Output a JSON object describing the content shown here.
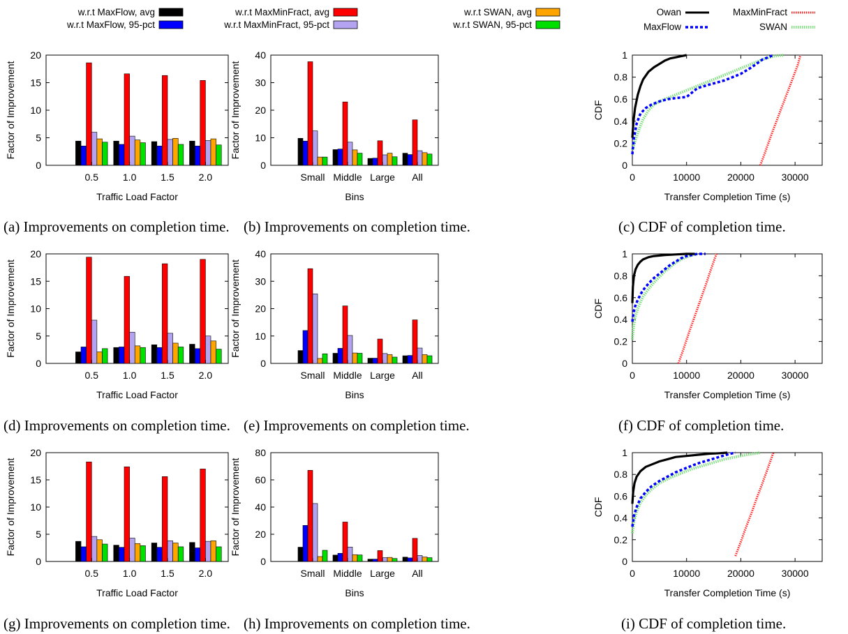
{
  "legend_top": {
    "items": [
      {
        "label": "w.r.t MaxFlow, avg",
        "color": "#000000"
      },
      {
        "label": "w.r.t MaxFlow, 95-pct",
        "color": "#0000ff"
      },
      {
        "label": "w.r.t MaxMinFract, avg",
        "color": "#ff0000"
      },
      {
        "label": "w.r.t MaxMinFract, 95-pct",
        "color": "#b3a3f0"
      },
      {
        "label": "w.r.t SWAN, avg",
        "color": "#ffa500"
      },
      {
        "label": "w.r.t SWAN, 95-pct",
        "color": "#00e000"
      }
    ]
  },
  "legend_cdf": {
    "items": [
      {
        "label": "Owan",
        "color": "#000000",
        "style": "solid"
      },
      {
        "label": "MaxMinFract",
        "color": "#ff2020",
        "style": "dotted"
      },
      {
        "label": "MaxFlow",
        "color": "#0000ff",
        "style": "dashed"
      },
      {
        "label": "SWAN",
        "color": "#7ee07e",
        "style": "dotted"
      }
    ]
  },
  "captions": {
    "a": "(a) Improvements on completion time.",
    "b": "(b) Improvements on completion time.",
    "c": "(c) CDF of completion time.",
    "d": "(d) Improvements on completion time.",
    "e": "(e) Improvements on completion time.",
    "f": "(f) CDF of completion time.",
    "g": "(g) Improvements on completion time.",
    "h": "(h) Improvements on completion time.",
    "i": "(i) CDF of completion time."
  },
  "chart_data": [
    {
      "id": "a",
      "type": "bar",
      "xlabel": "Traffic Load Factor",
      "ylabel": "Factor of Improvement",
      "ylim": [
        0,
        20
      ],
      "yticks": [
        0,
        5,
        10,
        15,
        20
      ],
      "categories": [
        "0.5",
        "1.0",
        "1.5",
        "2.0"
      ],
      "series": [
        {
          "name": "w.r.t MaxFlow, avg",
          "values": [
            4.4,
            4.4,
            4.3,
            4.4
          ]
        },
        {
          "name": "w.r.t MaxFlow, 95-pct",
          "values": [
            3.5,
            3.8,
            3.5,
            3.5
          ]
        },
        {
          "name": "w.r.t MaxMinFract, avg",
          "values": [
            18.6,
            16.6,
            16.3,
            15.4
          ]
        },
        {
          "name": "w.r.t MaxMinFract, 95-pct",
          "values": [
            6.0,
            5.3,
            4.7,
            4.5
          ]
        },
        {
          "name": "w.r.t SWAN, avg",
          "values": [
            4.8,
            4.6,
            4.9,
            4.8
          ]
        },
        {
          "name": "w.r.t SWAN, 95-pct",
          "values": [
            4.2,
            4.1,
            3.8,
            3.7
          ]
        }
      ]
    },
    {
      "id": "b",
      "type": "bar",
      "xlabel": "Bins",
      "ylabel": "Factor of Improvement",
      "ylim": [
        0,
        40
      ],
      "yticks": [
        0,
        10,
        20,
        30,
        40
      ],
      "categories": [
        "Small",
        "Middle",
        "Large",
        "All"
      ],
      "series": [
        {
          "name": "w.r.t MaxFlow, avg",
          "values": [
            9.8,
            5.7,
            2.5,
            4.4
          ]
        },
        {
          "name": "w.r.t MaxFlow, 95-pct",
          "values": [
            8.8,
            5.9,
            2.6,
            3.9
          ]
        },
        {
          "name": "w.r.t MaxMinFract, avg",
          "values": [
            37.6,
            23.0,
            8.9,
            16.5
          ]
        },
        {
          "name": "w.r.t MaxMinFract, 95-pct",
          "values": [
            12.5,
            8.4,
            3.8,
            5.3
          ]
        },
        {
          "name": "w.r.t SWAN, avg",
          "values": [
            3.0,
            5.6,
            4.4,
            4.6
          ]
        },
        {
          "name": "w.r.t SWAN, 95-pct",
          "values": [
            3.0,
            4.4,
            3.1,
            4.1
          ]
        }
      ]
    },
    {
      "id": "c",
      "type": "line",
      "xlabel": "Transfer Completion Time (s)",
      "ylabel": "CDF",
      "xlim": [
        0,
        35000
      ],
      "ylim": [
        0,
        1
      ],
      "xticks": [
        0,
        10000,
        20000,
        30000
      ],
      "yticks": [
        0,
        0.2,
        0.4,
        0.6,
        0.8,
        1
      ],
      "series": [
        {
          "name": "Owan",
          "x": [
            0,
            200,
            500,
            1000,
            1500,
            2000,
            3000,
            4000,
            5000,
            6000,
            7000,
            8000,
            9000,
            10000
          ],
          "y": [
            0.25,
            0.4,
            0.52,
            0.64,
            0.72,
            0.78,
            0.85,
            0.89,
            0.92,
            0.95,
            0.97,
            0.98,
            0.99,
            1.0
          ]
        },
        {
          "name": "MaxFlow",
          "x": [
            0,
            300,
            800,
            1500,
            2500,
            3500,
            5000,
            6500,
            8000,
            10000,
            12000,
            14000,
            17000,
            20000,
            22000,
            24000,
            26000
          ],
          "y": [
            0.1,
            0.25,
            0.38,
            0.47,
            0.52,
            0.55,
            0.58,
            0.6,
            0.61,
            0.62,
            0.7,
            0.73,
            0.77,
            0.83,
            0.89,
            0.96,
            1.0
          ]
        },
        {
          "name": "MaxMinFract",
          "x": [
            23600,
            24500,
            25500,
            26500,
            27500,
            28500,
            29500,
            30500,
            31000
          ],
          "y": [
            0.0,
            0.12,
            0.26,
            0.39,
            0.52,
            0.65,
            0.78,
            0.91,
            1.0
          ]
        },
        {
          "name": "SWAN",
          "x": [
            0,
            500,
            1200,
            2000,
            3000,
            4000,
            5000,
            6000,
            7000,
            9000,
            12000,
            15000,
            18000,
            21000,
            24000,
            26000,
            28000
          ],
          "y": [
            0.14,
            0.22,
            0.32,
            0.42,
            0.5,
            0.55,
            0.58,
            0.6,
            0.62,
            0.66,
            0.72,
            0.78,
            0.84,
            0.9,
            0.96,
            0.99,
            1.0
          ]
        }
      ]
    },
    {
      "id": "d",
      "type": "bar",
      "xlabel": "Traffic Load Factor",
      "ylabel": "Factor of Improvement",
      "ylim": [
        0,
        20
      ],
      "yticks": [
        0,
        5,
        10,
        15,
        20
      ],
      "categories": [
        "0.5",
        "1.0",
        "1.5",
        "2.0"
      ],
      "series": [
        {
          "name": "w.r.t MaxFlow, avg",
          "values": [
            2.1,
            2.9,
            3.4,
            3.5
          ]
        },
        {
          "name": "w.r.t MaxFlow, 95-pct",
          "values": [
            3.0,
            3.0,
            2.9,
            2.7
          ]
        },
        {
          "name": "w.r.t MaxMinFract, avg",
          "values": [
            19.4,
            15.9,
            18.2,
            19.0
          ]
        },
        {
          "name": "w.r.t MaxMinFract, 95-pct",
          "values": [
            7.9,
            5.7,
            5.5,
            5.0
          ]
        },
        {
          "name": "w.r.t SWAN, avg",
          "values": [
            2.1,
            3.2,
            3.7,
            4.1
          ]
        },
        {
          "name": "w.r.t SWAN, 95-pct",
          "values": [
            2.7,
            2.9,
            3.0,
            2.6
          ]
        }
      ]
    },
    {
      "id": "e",
      "type": "bar",
      "xlabel": "Bins",
      "ylabel": "Factor of Improvement",
      "ylim": [
        0,
        40
      ],
      "yticks": [
        0,
        10,
        20,
        30,
        40
      ],
      "categories": [
        "Small",
        "Middle",
        "Large",
        "All"
      ],
      "series": [
        {
          "name": "w.r.t MaxFlow, avg",
          "values": [
            4.7,
            3.7,
            1.9,
            2.8
          ]
        },
        {
          "name": "w.r.t MaxFlow, 95-pct",
          "values": [
            12.0,
            5.5,
            1.9,
            2.9
          ]
        },
        {
          "name": "w.r.t MaxMinFract, avg",
          "values": [
            34.6,
            21.0,
            8.9,
            15.9
          ]
        },
        {
          "name": "w.r.t MaxMinFract, 95-pct",
          "values": [
            25.4,
            10.2,
            3.6,
            5.6
          ]
        },
        {
          "name": "w.r.t SWAN, avg",
          "values": [
            1.8,
            3.8,
            3.2,
            3.2
          ]
        },
        {
          "name": "w.r.t SWAN, 95-pct",
          "values": [
            3.5,
            3.7,
            2.3,
            2.8
          ]
        }
      ]
    },
    {
      "id": "f",
      "type": "line",
      "xlabel": "Transfer Completion Time (s)",
      "ylabel": "CDF",
      "xlim": [
        0,
        35000
      ],
      "ylim": [
        0,
        1
      ],
      "xticks": [
        0,
        10000,
        20000,
        30000
      ],
      "yticks": [
        0,
        0.2,
        0.4,
        0.6,
        0.8,
        1
      ],
      "series": [
        {
          "name": "Owan",
          "x": [
            0,
            100,
            300,
            600,
            1000,
            1500,
            2000,
            3000,
            4000,
            5000,
            6000,
            8000,
            10000,
            11500
          ],
          "y": [
            0.55,
            0.7,
            0.8,
            0.86,
            0.9,
            0.93,
            0.95,
            0.97,
            0.98,
            0.985,
            0.99,
            0.995,
            1.0,
            1.0
          ]
        },
        {
          "name": "MaxFlow",
          "x": [
            0,
            200,
            500,
            1000,
            1500,
            2000,
            3000,
            4000,
            5000,
            6000,
            7000,
            8000,
            9000,
            10000,
            11000,
            12000,
            13500
          ],
          "y": [
            0.38,
            0.46,
            0.52,
            0.58,
            0.63,
            0.67,
            0.73,
            0.78,
            0.82,
            0.86,
            0.9,
            0.93,
            0.96,
            0.98,
            0.99,
            1.0,
            1.0
          ]
        },
        {
          "name": "MaxMinFract",
          "x": [
            8500,
            9500,
            10500,
            11500,
            12500,
            13500,
            14500,
            15500
          ],
          "y": [
            0.0,
            0.14,
            0.29,
            0.43,
            0.57,
            0.71,
            0.86,
            1.0
          ]
        },
        {
          "name": "SWAN",
          "x": [
            0,
            200,
            500,
            1000,
            1500,
            2000,
            3000,
            4000,
            5000,
            6000,
            7000,
            8000,
            9000,
            10000,
            11000,
            12000
          ],
          "y": [
            0.22,
            0.33,
            0.42,
            0.5,
            0.56,
            0.61,
            0.68,
            0.74,
            0.79,
            0.84,
            0.88,
            0.92,
            0.95,
            0.97,
            0.99,
            1.0
          ]
        }
      ]
    },
    {
      "id": "g",
      "type": "bar",
      "xlabel": "Traffic Load Factor",
      "ylabel": "Factor of Improvement",
      "ylim": [
        0,
        20
      ],
      "yticks": [
        0,
        5,
        10,
        15,
        20
      ],
      "categories": [
        "0.5",
        "1.0",
        "1.5",
        "2.0"
      ],
      "series": [
        {
          "name": "w.r.t MaxFlow, avg",
          "values": [
            3.7,
            3.0,
            3.4,
            3.5
          ]
        },
        {
          "name": "w.r.t MaxFlow, 95-pct",
          "values": [
            2.7,
            2.6,
            2.6,
            2.5
          ]
        },
        {
          "name": "w.r.t MaxMinFract, avg",
          "values": [
            18.3,
            17.4,
            15.6,
            17.0
          ]
        },
        {
          "name": "w.r.t MaxMinFract, 95-pct",
          "values": [
            4.6,
            4.3,
            3.8,
            3.7
          ]
        },
        {
          "name": "w.r.t SWAN, avg",
          "values": [
            4.0,
            3.3,
            3.4,
            3.8
          ]
        },
        {
          "name": "w.r.t SWAN, 95-pct",
          "values": [
            3.2,
            2.9,
            2.7,
            2.7
          ]
        }
      ]
    },
    {
      "id": "h",
      "type": "bar",
      "xlabel": "Bins",
      "ylabel": "Factor of Improvement",
      "ylim": [
        0,
        80
      ],
      "yticks": [
        0,
        20,
        40,
        60,
        80
      ],
      "categories": [
        "Small",
        "Middle",
        "Large",
        "All"
      ],
      "series": [
        {
          "name": "w.r.t MaxFlow, avg",
          "values": [
            10.5,
            4.7,
            1.7,
            3.2
          ]
        },
        {
          "name": "w.r.t MaxFlow, 95-pct",
          "values": [
            26.5,
            6.0,
            1.7,
            2.6
          ]
        },
        {
          "name": "w.r.t MaxMinFract, avg",
          "values": [
            67.0,
            29.0,
            8.0,
            17.0
          ]
        },
        {
          "name": "w.r.t MaxMinFract, 95-pct",
          "values": [
            42.6,
            10.6,
            2.8,
            4.4
          ]
        },
        {
          "name": "w.r.t SWAN, avg",
          "values": [
            3.6,
            5.0,
            3.0,
            3.3
          ]
        },
        {
          "name": "w.r.t SWAN, 95-pct",
          "values": [
            8.2,
            4.8,
            2.2,
            2.8
          ]
        }
      ]
    },
    {
      "id": "i",
      "type": "line",
      "xlabel": "Transfer Completion Time (s)",
      "ylabel": "CDF",
      "xlim": [
        0,
        35000
      ],
      "ylim": [
        0,
        1
      ],
      "xticks": [
        0,
        10000,
        20000,
        30000
      ],
      "yticks": [
        0,
        0.2,
        0.4,
        0.6,
        0.8,
        1
      ],
      "series": [
        {
          "name": "Owan",
          "x": [
            0,
            150,
            400,
            800,
            1500,
            2500,
            3500,
            5000,
            6500,
            8000,
            10000,
            12000,
            14000,
            16000,
            17500
          ],
          "y": [
            0.53,
            0.64,
            0.72,
            0.78,
            0.83,
            0.87,
            0.89,
            0.92,
            0.94,
            0.96,
            0.97,
            0.98,
            0.99,
            0.995,
            1.0
          ]
        },
        {
          "name": "MaxFlow",
          "x": [
            0,
            300,
            800,
            1500,
            2500,
            3500,
            5000,
            6500,
            8000,
            10000,
            12000,
            14000,
            16000,
            18000,
            19000
          ],
          "y": [
            0.32,
            0.42,
            0.5,
            0.58,
            0.64,
            0.69,
            0.74,
            0.78,
            0.82,
            0.86,
            0.9,
            0.93,
            0.96,
            0.99,
            1.0
          ]
        },
        {
          "name": "MaxMinFract",
          "x": [
            19000,
            20000,
            21000,
            22000,
            23000,
            24000,
            25000,
            26000
          ],
          "y": [
            0.05,
            0.18,
            0.32,
            0.45,
            0.59,
            0.72,
            0.86,
            1.0
          ]
        },
        {
          "name": "SWAN",
          "x": [
            0,
            300,
            800,
            1500,
            2500,
            3500,
            5000,
            7000,
            9000,
            11000,
            13000,
            15000,
            17000,
            19000,
            21000,
            23000,
            23500
          ],
          "y": [
            0.26,
            0.37,
            0.46,
            0.54,
            0.61,
            0.66,
            0.72,
            0.77,
            0.81,
            0.85,
            0.88,
            0.91,
            0.94,
            0.96,
            0.98,
            0.995,
            1.0
          ]
        }
      ]
    }
  ]
}
